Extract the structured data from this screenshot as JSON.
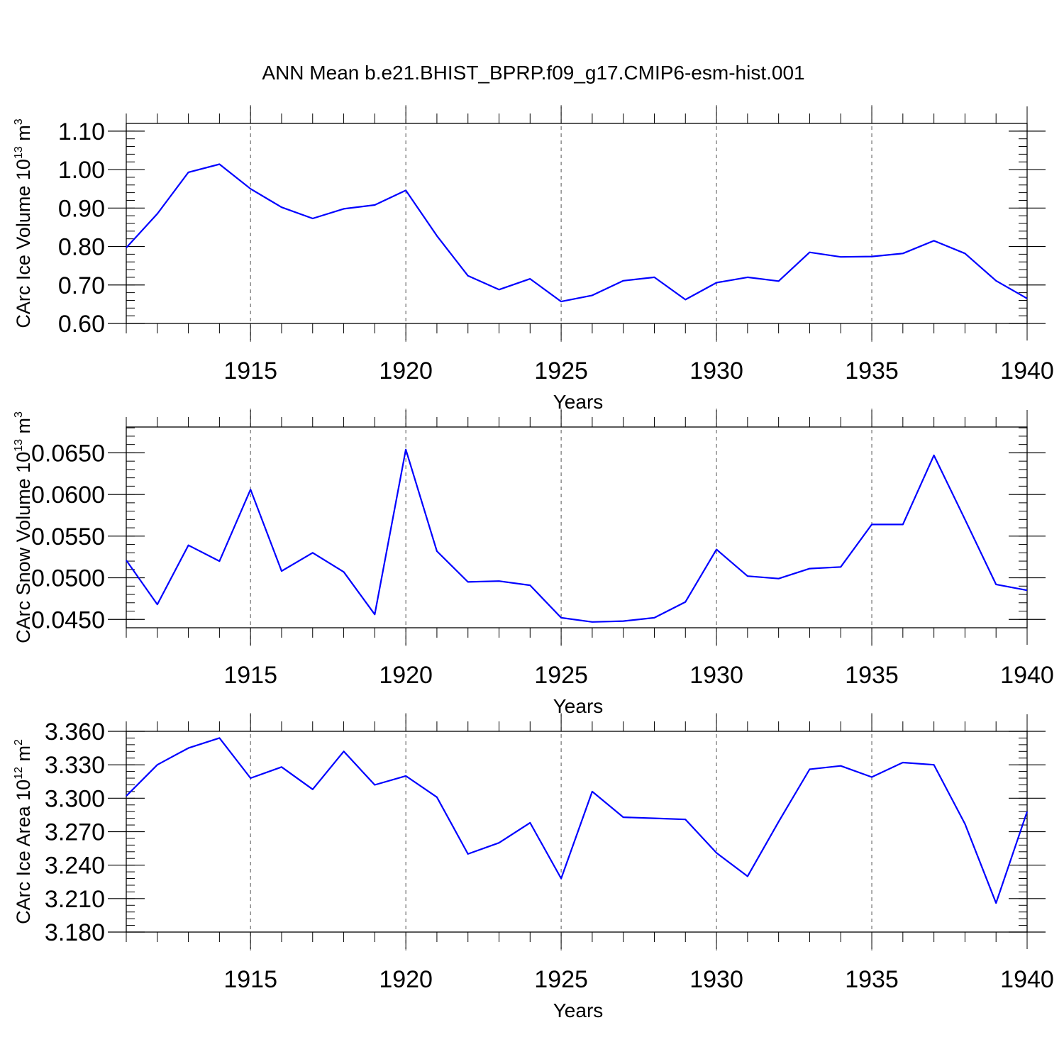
{
  "figure": {
    "title": "ANN Mean b.e21.BHIST_BPRP.f09_g17.CMIP6-esm-hist.001"
  },
  "chart_data": [
    {
      "type": "line",
      "xlabel": "Years",
      "ylabel": {
        "text": "CArc Ice Volume 10",
        "sup": "13",
        "unit": " m",
        "unit_sup": "3"
      },
      "xlim": [
        1911,
        1940
      ],
      "ylim": [
        0.6,
        1.12
      ],
      "yticks": [
        0.6,
        0.7,
        0.8,
        0.9,
        1.0,
        1.1
      ],
      "ytick_labels": [
        "0.60",
        "0.70",
        "0.80",
        "0.90",
        "1.00",
        "1.10"
      ],
      "xticks": [
        1915,
        1920,
        1925,
        1930,
        1935,
        1940
      ],
      "xtick_labels": [
        "1915",
        "1920",
        "1925",
        "1930",
        "1935",
        "1940"
      ],
      "grid_x": [
        1915,
        1920,
        1925,
        1930,
        1935
      ],
      "line_color": "#0000ff",
      "x": [
        1911,
        1912,
        1913,
        1914,
        1915,
        1916,
        1917,
        1918,
        1919,
        1920,
        1921,
        1922,
        1923,
        1924,
        1925,
        1926,
        1927,
        1928,
        1929,
        1930,
        1931,
        1932,
        1933,
        1934,
        1935,
        1936,
        1937,
        1938,
        1939,
        1940
      ],
      "y": [
        0.797,
        0.885,
        0.993,
        1.014,
        0.95,
        0.902,
        0.873,
        0.898,
        0.908,
        0.946,
        0.828,
        0.724,
        0.688,
        0.716,
        0.657,
        0.673,
        0.711,
        0.72,
        0.662,
        0.706,
        0.72,
        0.71,
        0.785,
        0.773,
        0.774,
        0.782,
        0.815,
        0.782,
        0.711,
        0.665
      ]
    },
    {
      "type": "line",
      "xlabel": "Years",
      "ylabel": {
        "text": "CArc Snow Volume 10",
        "sup": "13",
        "unit": " m",
        "unit_sup": "3"
      },
      "xlim": [
        1911,
        1940
      ],
      "ylim": [
        0.044,
        0.0681
      ],
      "yticks": [
        0.045,
        0.05,
        0.055,
        0.06,
        0.065
      ],
      "ytick_labels": [
        "0.0450",
        "0.0500",
        "0.0550",
        "0.0600",
        "0.0650"
      ],
      "xticks": [
        1915,
        1920,
        1925,
        1930,
        1935,
        1940
      ],
      "xtick_labels": [
        "1915",
        "1920",
        "1925",
        "1930",
        "1935",
        "1940"
      ],
      "grid_x": [
        1915,
        1920,
        1925,
        1930,
        1935
      ],
      "line_color": "#0000ff",
      "x": [
        1911,
        1912,
        1913,
        1914,
        1915,
        1916,
        1917,
        1918,
        1919,
        1920,
        1921,
        1922,
        1923,
        1924,
        1925,
        1926,
        1927,
        1928,
        1929,
        1930,
        1931,
        1932,
        1933,
        1934,
        1935,
        1936,
        1937,
        1938,
        1939,
        1940
      ],
      "y": [
        0.0521,
        0.0468,
        0.0539,
        0.052,
        0.0606,
        0.0508,
        0.053,
        0.0507,
        0.0456,
        0.0654,
        0.0532,
        0.0495,
        0.0496,
        0.0491,
        0.0452,
        0.0447,
        0.0448,
        0.0452,
        0.0471,
        0.0534,
        0.0502,
        0.0499,
        0.0511,
        0.0513,
        0.0564,
        0.0564,
        0.0647,
        0.057,
        0.0492,
        0.0485
      ]
    },
    {
      "type": "line",
      "xlabel": "Years",
      "ylabel": {
        "text": "CArc Ice Area 10",
        "sup": "12",
        "unit": " m",
        "unit_sup": "2"
      },
      "xlim": [
        1911,
        1940
      ],
      "ylim": [
        3.18,
        3.36
      ],
      "yticks": [
        3.18,
        3.21,
        3.24,
        3.27,
        3.3,
        3.33,
        3.36
      ],
      "ytick_labels": [
        "3.180",
        "3.210",
        "3.240",
        "3.270",
        "3.300",
        "3.330",
        "3.360"
      ],
      "xticks": [
        1915,
        1920,
        1925,
        1930,
        1935,
        1940
      ],
      "xtick_labels": [
        "1915",
        "1920",
        "1925",
        "1930",
        "1935",
        "1940"
      ],
      "grid_x": [
        1915,
        1920,
        1925,
        1930,
        1935
      ],
      "line_color": "#0000ff",
      "x": [
        1911,
        1912,
        1913,
        1914,
        1915,
        1916,
        1917,
        1918,
        1919,
        1920,
        1921,
        1922,
        1923,
        1924,
        1925,
        1926,
        1927,
        1928,
        1929,
        1930,
        1931,
        1932,
        1933,
        1934,
        1935,
        1936,
        1937,
        1938,
        1939,
        1940
      ],
      "y": [
        3.302,
        3.33,
        3.345,
        3.354,
        3.318,
        3.328,
        3.308,
        3.342,
        3.312,
        3.32,
        3.301,
        3.25,
        3.26,
        3.278,
        3.228,
        3.306,
        3.283,
        3.282,
        3.281,
        3.251,
        3.23,
        3.279,
        3.326,
        3.329,
        3.319,
        3.332,
        3.33,
        3.277,
        3.206,
        3.288
      ]
    }
  ]
}
